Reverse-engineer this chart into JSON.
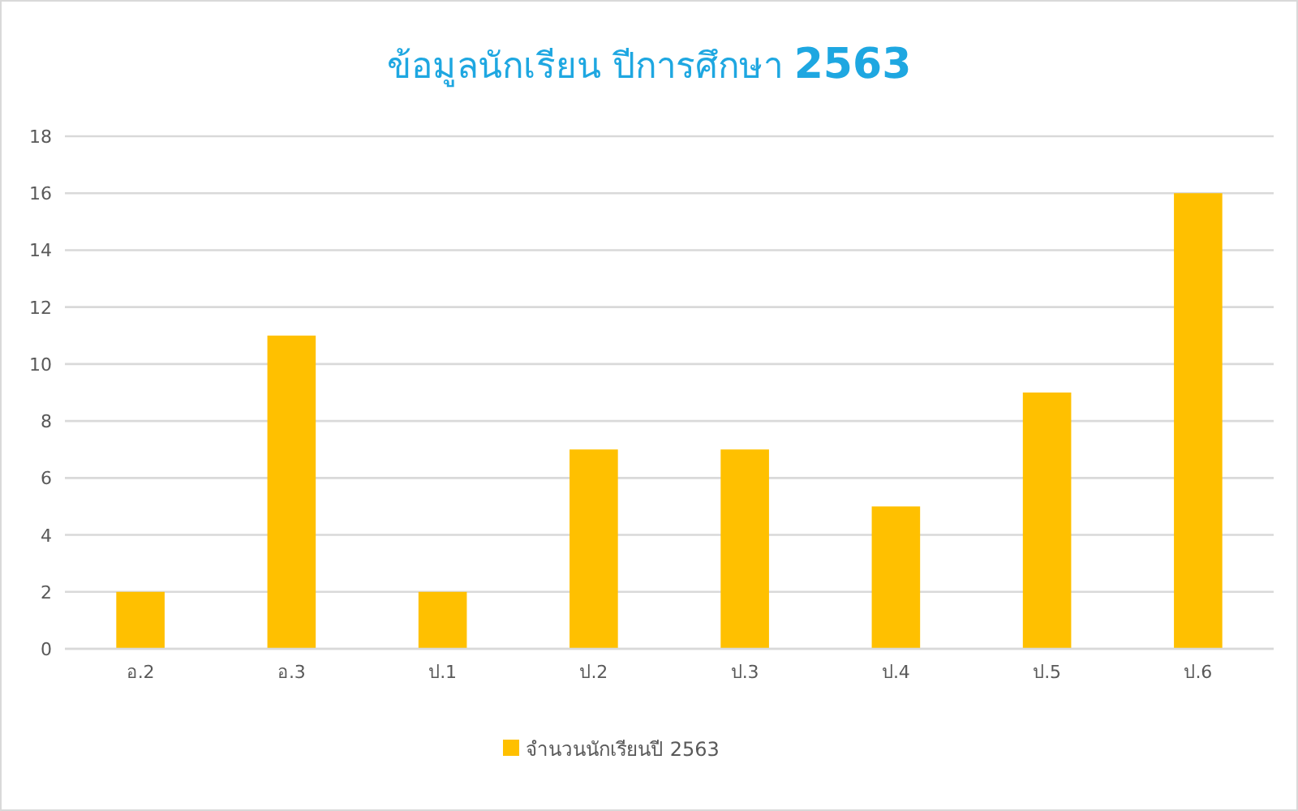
{
  "chart_data": {
    "type": "bar",
    "title": "ข้อมูลนักเรียน ปีการศึกษา **2563**",
    "categories": [
      "อ.2",
      "อ.3",
      "ป.1",
      "ป.2",
      "ป.3",
      "ป.4",
      "ป.5",
      "ป.6"
    ],
    "series": [
      {
        "name": "จำนวนนักเรียนปี 2563",
        "color": "#ffc000",
        "values": [
          2,
          11,
          2,
          7,
          7,
          5,
          9,
          16
        ]
      }
    ],
    "ylim": [
      0,
      18
    ],
    "yticks": [
      0,
      2,
      4,
      6,
      8,
      10,
      12,
      14,
      16,
      18
    ],
    "grid": "y",
    "legend": "bottom"
  }
}
